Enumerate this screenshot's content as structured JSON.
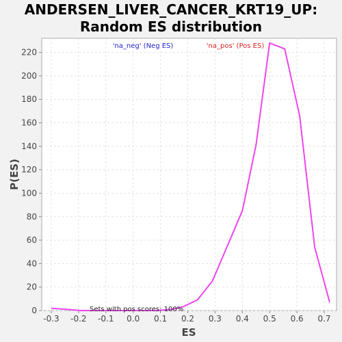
{
  "chart_data": {
    "type": "line",
    "title": [
      "ANDERSEN_LIVER_CANCER_KRT19_UP:",
      "Random ES distribution"
    ],
    "xlabel": "ES",
    "ylabel": "P(ES)",
    "xlim": [
      -0.335,
      0.745
    ],
    "ylim": [
      0,
      232
    ],
    "grid": true,
    "x_ticks": [
      -0.3,
      -0.2,
      -0.1,
      0.0,
      0.1,
      0.2,
      0.3,
      0.4,
      0.5,
      0.6,
      0.7
    ],
    "x_tick_labels": [
      "-0.3",
      "-0.2",
      "-0.1",
      "0.0",
      "0.1",
      "0.2",
      "0.3",
      "0.4",
      "0.5",
      "0.6",
      "0.7"
    ],
    "y_ticks": [
      0,
      20,
      40,
      60,
      80,
      100,
      120,
      140,
      160,
      180,
      200,
      220
    ],
    "y_tick_labels": [
      "0",
      "20",
      "40",
      "60",
      "80",
      "100",
      "120",
      "140",
      "160",
      "180",
      "200",
      "220"
    ],
    "legend": [
      {
        "label": "'na_neg' (Neg ES)",
        "color": "#2222cc"
      },
      {
        "label": "'na_pos' (Pos ES)",
        "color": "#dd2222"
      }
    ],
    "legend_placement": "top",
    "annotation": "Sets with pos scores: 100%",
    "series": [
      {
        "color": "#ee44ee",
        "x": [
          -0.3,
          -0.245,
          -0.19,
          -0.135,
          -0.08,
          -0.025,
          0.03,
          0.085,
          0.14,
          0.18,
          0.235,
          0.29,
          0.345,
          0.4,
          0.45,
          0.5,
          0.555,
          0.61,
          0.665,
          0.72
        ],
        "y": [
          2,
          1,
          0,
          0,
          0,
          0,
          0,
          0,
          1,
          3,
          9,
          25,
          55,
          85,
          141,
          228,
          223,
          166,
          54,
          7
        ]
      }
    ]
  }
}
